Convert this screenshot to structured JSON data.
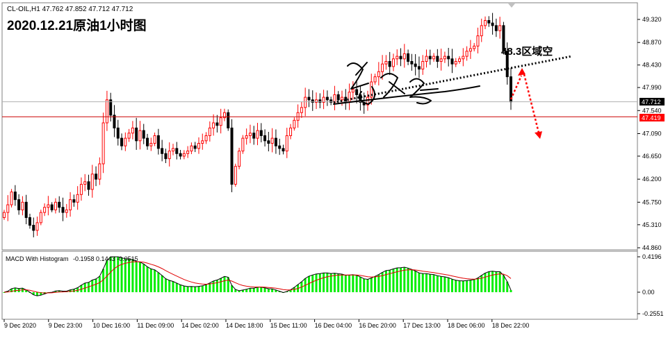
{
  "header": {
    "symbol_info": "CL-OIL,H1  47.762 47.852 47.712 47.712",
    "headline": "2020.12.21原油1小时图"
  },
  "annotation": {
    "level_note": "48.3区域空"
  },
  "colors": {
    "bull": "#ff0000",
    "bear": "#000000",
    "hist_pos": "#00ee00",
    "macd_line": "#000000",
    "signal_line": "#e00000",
    "price_line": "#cc0000",
    "bid_tag": "#ff0000",
    "last_tag": "#000000"
  },
  "chart_data": [
    {
      "type": "candlestick",
      "symbol": "CL-OIL",
      "timeframe": "H1",
      "price_axis": {
        "ylim": [
          44.86,
          49.5
        ],
        "ticks": [
          "49.320",
          "48.870",
          "48.430",
          "47.990",
          "47.540",
          "47.090",
          "46.650",
          "46.200",
          "45.750",
          "45.310",
          "44.860"
        ]
      },
      "time_axis": {
        "labels": [
          "9 Dec 2020",
          "9 Dec 23:00",
          "10 Dec 16:00",
          "11 Dec 09:00",
          "14 Dec 02:00",
          "14 Dec 18:00",
          "15 Dec 11:00",
          "16 Dec 04:00",
          "16 Dec 20:00",
          "17 Dec 13:00",
          "18 Dec 06:00",
          "18 Dec 22:00"
        ]
      },
      "current_price": "47.712",
      "current_price_2": "47.419",
      "current_price_value": 47.712,
      "horizontal_line": 47.419,
      "trendline": {
        "from": [
          "15 Dec 11:00",
          47.7
        ],
        "to": [
          "18 Dec 22:00",
          48.6
        ],
        "style": "dotted"
      },
      "arrows": [
        {
          "from": 47.76,
          "to": 48.33,
          "style": "dotted",
          "direction": "up"
        },
        {
          "from": 48.33,
          "to": 47.0,
          "style": "dotted",
          "direction": "down"
        }
      ],
      "closes": [
        45.55,
        45.7,
        45.95,
        45.8,
        45.6,
        45.75,
        45.45,
        45.3,
        45.2,
        45.35,
        45.55,
        45.65,
        45.7,
        45.6,
        45.75,
        45.65,
        45.55,
        45.6,
        45.8,
        45.75,
        45.9,
        46.1,
        46.15,
        46.0,
        46.3,
        46.2,
        46.5,
        47.3,
        47.75,
        47.45,
        47.2,
        47.0,
        46.85,
        47.0,
        47.1,
        47.2,
        46.95,
        47.15,
        47.0,
        46.85,
        46.9,
        47.05,
        46.8,
        46.7,
        46.6,
        46.75,
        46.8,
        46.7,
        46.65,
        46.7,
        46.75,
        46.85,
        46.8,
        46.9,
        46.95,
        47.05,
        47.2,
        47.3,
        47.25,
        47.4,
        47.5,
        47.2,
        46.1,
        46.45,
        46.75,
        47.0,
        47.05,
        47.1,
        47.0,
        47.15,
        47.05,
        46.95,
        46.9,
        47.0,
        46.85,
        46.8,
        46.75,
        47.05,
        47.2,
        47.35,
        47.5,
        47.6,
        47.8,
        47.75,
        47.7,
        47.75,
        47.7,
        47.8,
        47.75,
        47.7,
        47.85,
        47.75,
        47.8,
        47.7,
        47.9,
        47.95,
        47.85,
        47.7,
        47.65,
        47.8,
        48.1,
        48.2,
        48.3,
        48.45,
        48.5,
        48.4,
        48.55,
        48.6,
        48.55,
        48.65,
        48.5,
        48.45,
        48.4,
        48.35,
        48.5,
        48.6,
        48.55,
        48.6,
        48.5,
        48.55,
        48.6,
        48.55,
        48.45,
        48.5,
        48.55,
        48.6,
        48.7,
        48.75,
        48.8,
        49.0,
        49.2,
        49.3,
        49.25,
        49.2,
        49.1,
        49.2,
        48.7,
        48.2,
        47.71
      ],
      "macd": {
        "label": "MACD With Histogram",
        "values": "-0.1958 0.1443 -0.0515",
        "ylim": [
          -0.2551,
          0.4196
        ],
        "ticks": [
          "0.4196",
          "0.00",
          "-0.2551"
        ],
        "main": -0.1958,
        "signal": 0.1443,
        "histogram": -0.0515
      }
    }
  ]
}
